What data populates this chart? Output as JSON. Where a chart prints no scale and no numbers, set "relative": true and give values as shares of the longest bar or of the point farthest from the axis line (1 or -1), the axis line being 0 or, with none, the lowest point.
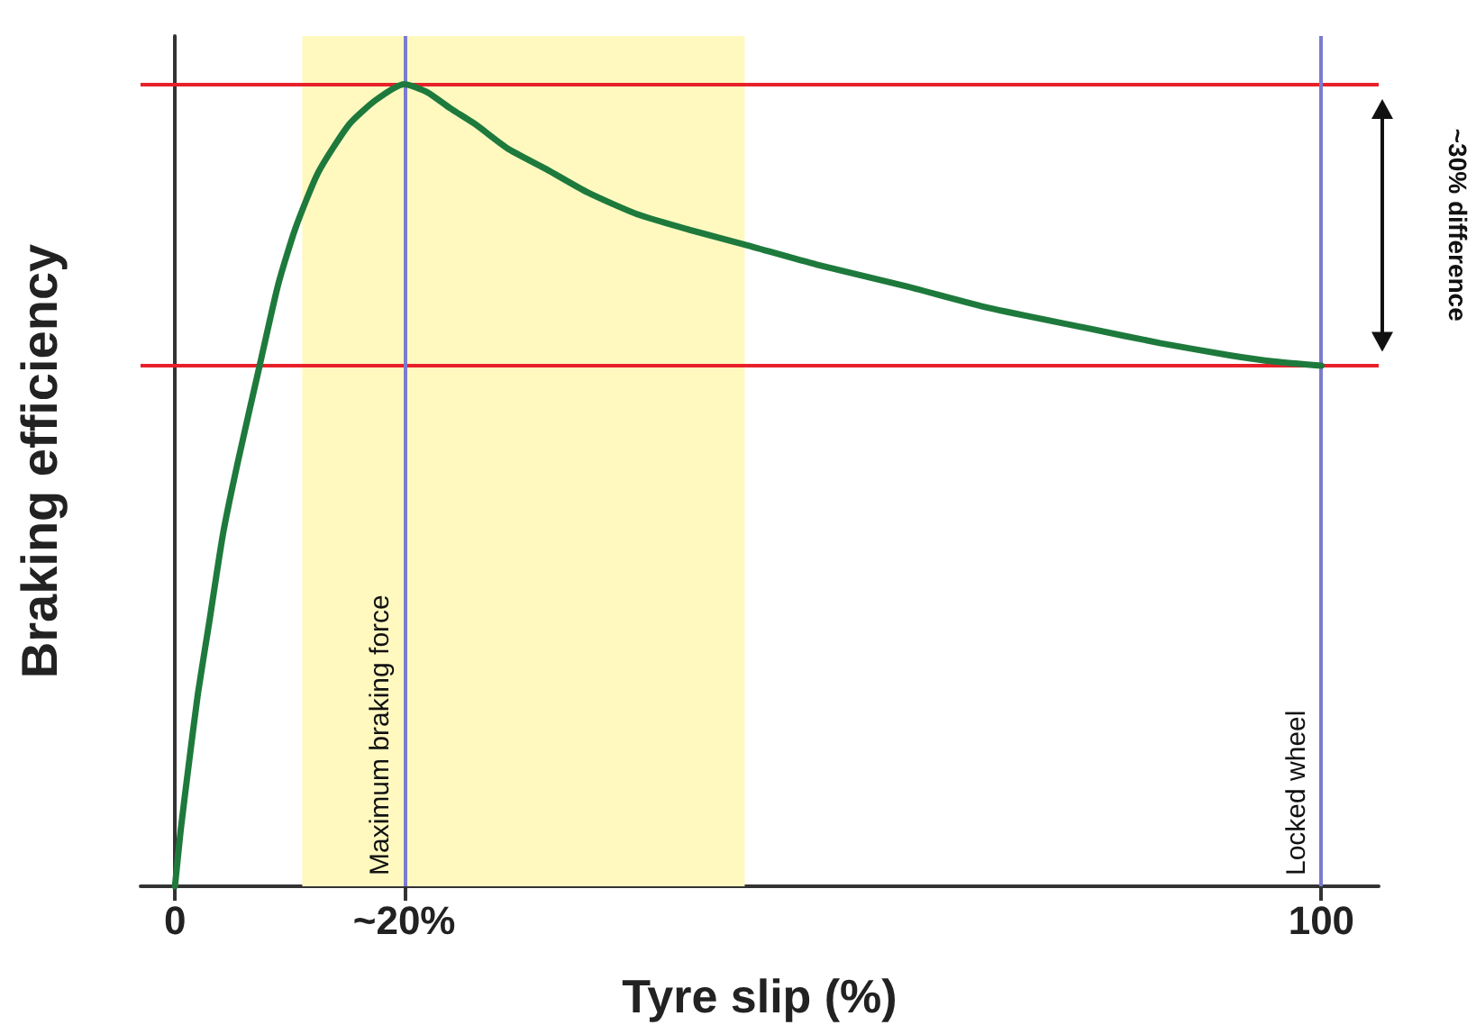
{
  "chart_data": {
    "type": "line",
    "xlabel": "Tyre slip (%)",
    "ylabel": "Braking efficiency",
    "relative": true,
    "x": [
      0,
      0.5,
      1.1,
      2,
      3,
      4.2,
      5.5,
      7.4,
      9,
      10.5,
      12.5,
      15.2,
      17.5,
      20,
      22,
      24,
      26.2,
      29,
      32.4,
      36,
      40.3,
      45,
      49.7,
      56,
      63.8,
      71,
      79.5,
      86,
      92,
      96,
      100
    ],
    "series": [
      {
        "color": "#1e7a3c",
        "values": [
          0,
          0.07,
          0.14,
          0.24,
          0.33,
          0.44,
          0.53,
          0.65,
          0.75,
          0.82,
          0.89,
          0.95,
          0.98,
          1,
          0.99,
          0.97,
          0.95,
          0.92,
          0.894,
          0.865,
          0.838,
          0.818,
          0.8,
          0.775,
          0.748,
          0.721,
          0.696,
          0.677,
          0.662,
          0.654,
          0.649
        ]
      }
    ],
    "xlim": [
      -3,
      105
    ],
    "xticks": [
      0,
      {
        "value": 20,
        "label": "~20%"
      },
      100
    ],
    "ref_lines": [
      {
        "axis": "y",
        "value": 1,
        "color": "#e8202a"
      },
      {
        "axis": "y",
        "value": 0.649,
        "color": "#e8202a"
      },
      {
        "axis": "x",
        "value": 20,
        "label": "Maximum braking force",
        "color": "#7b7bd0"
      },
      {
        "axis": "x",
        "value": 100,
        "label": "Locked wheel",
        "color": "#7b7bd0"
      }
    ],
    "bands": [
      {
        "axis": "x",
        "from": 11.1,
        "to": 49.7,
        "color": "#fff9c0"
      }
    ],
    "annotations": [
      "~30% difference"
    ],
    "marker": "none",
    "line_style": "solid"
  }
}
